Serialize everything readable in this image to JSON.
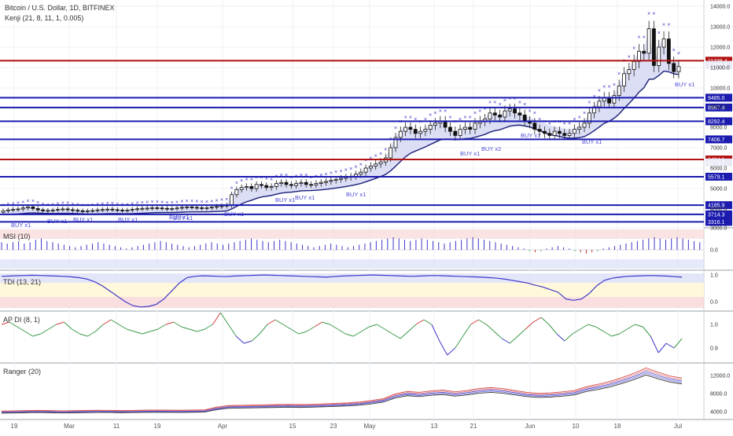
{
  "header": {
    "symbol_line": "Bitcoin / U.S. Dollar, 1D, BITFINEX",
    "indicator_line": "Kenji (21, 8, 11, 1, 0.005)"
  },
  "colors": {
    "grid": "#eef0f4",
    "level_blue": "#1b1bb0",
    "level_red": "#b31212",
    "band_fill": "#d5d8f2",
    "band_line": "#1b1f78",
    "x_marker": "#3f37c9",
    "buy_text": "#4b4bd9"
  },
  "chart_data": [
    {
      "type": "candlestick",
      "pane": "price",
      "title": "Bitcoin / U.S. Dollar, 1D, BITFINEX",
      "indicator": "Kenji (21, 8, 11, 1, 0.005)",
      "x_ticks": [
        "19",
        "Mar",
        "11",
        "19",
        "Apr",
        "15",
        "23",
        "May",
        "13",
        "21",
        "Jun",
        "10",
        "18",
        "Jul"
      ],
      "y_ticks": [
        14000.0,
        13000.0,
        12000.0,
        11000.0,
        10000.0,
        9000.0,
        8000.0,
        7000.0,
        6000.0,
        5000.0,
        4000.0,
        3000.0
      ],
      "price_tags": [
        11336.4,
        11133.4,
        9485.0,
        8967.4,
        8292.4,
        7406.7,
        6424.1,
        6275.7,
        5579.1,
        4185.9,
        3714.3,
        3316.1
      ],
      "horizontal_levels": [
        {
          "value": 11336.4,
          "color": "red"
        },
        {
          "value": 9485.0,
          "color": "blue"
        },
        {
          "value": 8967.4,
          "color": "blue"
        },
        {
          "value": 8292.4,
          "color": "blue"
        },
        {
          "value": 7406.7,
          "color": "blue"
        },
        {
          "value": 6424.1,
          "color": "red"
        },
        {
          "value": 5579.1,
          "color": "blue"
        },
        {
          "value": 4185.9,
          "color": "blue"
        },
        {
          "value": 3714.3,
          "color": "blue"
        },
        {
          "value": 3316.1,
          "color": "blue"
        }
      ],
      "signal_labels": [
        "BUY x1",
        "BUY x1",
        "BUY x1",
        "BUY x1",
        "BUY x1",
        "BUY x1",
        "BUY x1",
        "BUY x1",
        "BUY x1",
        "BUY x1",
        "BUY x1",
        "BUY x2",
        "BUY x1",
        "BUY x1",
        "BUY x1"
      ],
      "close_series": [
        3900,
        3950,
        3980,
        4000,
        4050,
        4100,
        4020,
        3950,
        3900,
        3920,
        3940,
        3980,
        4000,
        3960,
        3930,
        3900,
        3880,
        3900,
        3920,
        3950,
        3970,
        3990,
        3960,
        3940,
        3920,
        3940,
        3980,
        4010,
        4030,
        4040,
        4060,
        4050,
        4030,
        4000,
        4020,
        4050,
        4080,
        4100,
        4080,
        4060,
        4040,
        4060,
        4090,
        4120,
        4150,
        4180,
        4700,
        4950,
        5050,
        5100,
        5000,
        5200,
        5150,
        5050,
        5100,
        5250,
        5300,
        5200,
        5150,
        5250,
        5300,
        5200,
        5180,
        5250,
        5300,
        5350,
        5400,
        5450,
        5500,
        5550,
        5600,
        5700,
        5800,
        6000,
        6100,
        6200,
        6300,
        6500,
        7000,
        7500,
        7800,
        8000,
        7900,
        7700,
        7800,
        7900,
        8100,
        8200,
        8300,
        8000,
        7800,
        7600,
        7900,
        8000,
        7900,
        8200,
        8300,
        8400,
        8700,
        8600,
        8500,
        8800,
        8900,
        8700,
        8600,
        8300,
        8200,
        7900,
        7800,
        7700,
        7600,
        7800,
        7700,
        7600,
        7700,
        7900,
        8000,
        8200,
        8700,
        9000,
        9300,
        9500,
        9200,
        9600,
        10100,
        10700,
        10900,
        11300,
        11800,
        11700,
        12900,
        11100,
        12000,
        12400,
        11200,
        10800,
        11050
      ]
    },
    {
      "type": "bar",
      "pane": "MSI",
      "title": "MSI (10)",
      "y_ticks": [
        0.0
      ],
      "values": [
        0.6,
        0.5,
        0.6,
        0.7,
        0.5,
        0.6,
        0.8,
        0.9,
        0.7,
        0.6,
        0.5,
        0.4,
        0.3,
        0.2,
        0.3,
        0.4,
        0.5,
        0.6,
        0.5,
        0.4,
        0.3,
        0.2,
        0.1,
        0.2,
        0.3,
        0.4,
        0.5,
        0.6,
        0.7,
        0.6,
        0.5,
        0.4,
        0.3,
        0.2,
        0.3,
        0.4,
        0.5,
        0.6,
        0.5,
        0.4,
        0.5,
        0.6,
        0.7,
        0.8,
        0.9,
        0.8,
        0.7,
        0.6,
        0.7,
        0.8,
        0.7,
        0.6,
        0.5,
        0.4,
        0.3,
        0.2,
        0.3,
        0.4,
        0.5,
        0.4,
        0.3,
        0.2,
        0.3,
        0.4,
        0.5,
        0.6,
        0.7,
        0.8,
        0.9,
        1.0,
        0.9,
        0.8,
        0.7,
        0.8,
        0.9,
        0.8,
        0.7,
        0.6,
        0.5,
        0.6,
        0.7,
        0.8,
        0.9,
        1.0,
        0.9,
        0.8,
        0.7,
        0.6,
        0.5,
        0.4,
        0.3,
        0.2,
        0.1,
        -0.1,
        -0.2,
        -0.1,
        0.1,
        0.2,
        0.3,
        0.2,
        0.1,
        -0.1,
        -0.2,
        -0.3,
        -0.2,
        -0.1,
        0.1,
        0.2,
        0.3,
        0.4,
        0.5,
        0.6,
        0.7,
        0.8,
        0.9,
        1.0,
        0.9,
        0.8,
        0.9,
        1.0,
        0.9,
        0.8,
        0.7,
        0.6
      ]
    },
    {
      "type": "line",
      "pane": "TDI",
      "title": "TDI (13, 21)",
      "y_ticks": [
        1.0,
        0.0
      ],
      "values": [
        0.95,
        0.96,
        0.97,
        0.98,
        0.99,
        0.98,
        0.97,
        0.96,
        0.95,
        0.93,
        0.9,
        0.85,
        0.75,
        0.6,
        0.4,
        0.2,
        0.0,
        -0.15,
        -0.2,
        -0.18,
        -0.1,
        0.1,
        0.4,
        0.7,
        0.9,
        0.95,
        0.97,
        0.96,
        0.95,
        0.94,
        0.96,
        0.97,
        0.98,
        0.99,
        1.0,
        0.99,
        0.98,
        0.97,
        0.96,
        0.95,
        0.94,
        0.93,
        0.92,
        0.94,
        0.96,
        0.97,
        0.98,
        0.99,
        1.0,
        0.99,
        0.98,
        0.97,
        0.96,
        0.95,
        0.96,
        0.97,
        0.98,
        0.97,
        0.96,
        0.95,
        0.94,
        0.93,
        0.92,
        0.9,
        0.88,
        0.85,
        0.8,
        0.75,
        0.7,
        0.62,
        0.55,
        0.45,
        0.35,
        0.1,
        0.05,
        0.1,
        0.3,
        0.6,
        0.8,
        0.88,
        0.92,
        0.95,
        0.96,
        0.97,
        0.98,
        0.97,
        0.96,
        0.94,
        0.92
      ]
    },
    {
      "type": "line",
      "pane": "AP DI",
      "title": "AP DI (8, 1)",
      "y_ticks": [
        1.0,
        0.9
      ],
      "values": [
        1.0,
        1.01,
        0.99,
        0.97,
        0.95,
        0.96,
        0.98,
        1.0,
        1.01,
        0.98,
        0.96,
        0.95,
        0.97,
        1.0,
        1.02,
        1.0,
        0.98,
        0.97,
        0.96,
        0.97,
        0.98,
        1.0,
        1.01,
        0.99,
        0.98,
        0.97,
        0.98,
        1.0,
        1.05,
        1.0,
        0.95,
        0.92,
        0.93,
        0.96,
        1.0,
        1.02,
        1.0,
        0.98,
        0.96,
        0.97,
        0.99,
        1.01,
        1.0,
        0.98,
        0.96,
        0.95,
        0.97,
        0.99,
        1.0,
        0.98,
        0.96,
        0.94,
        0.97,
        1.0,
        1.02,
        1.0,
        0.93,
        0.87,
        0.9,
        0.95,
        1.0,
        1.02,
        1.0,
        0.97,
        0.94,
        0.92,
        0.95,
        0.98,
        1.01,
        1.03,
        1.0,
        0.96,
        0.93,
        0.96,
        0.98,
        1.0,
        0.99,
        0.97,
        0.95,
        0.96,
        0.98,
        1.0,
        0.99,
        0.95,
        0.88,
        0.92,
        0.9,
        0.94
      ]
    },
    {
      "type": "line",
      "pane": "Ranger",
      "title": "Ranger (20)",
      "y_ticks": [
        12000.0,
        8000.0,
        4000.0
      ],
      "values": [
        3900,
        3950,
        4000,
        4050,
        4000,
        3950,
        3980,
        4020,
        4060,
        4050,
        4000,
        4030,
        4080,
        4100,
        4080,
        4060,
        4100,
        4150,
        4700,
        5050,
        5100,
        5150,
        5200,
        5250,
        5300,
        5250,
        5300,
        5400,
        5500,
        5600,
        5800,
        6100,
        6500,
        7500,
        8000,
        7800,
        8100,
        8300,
        7900,
        8200,
        8600,
        8800,
        8600,
        8200,
        7800,
        7600,
        7700,
        7900,
        8200,
        9000,
        9500,
        10100,
        10900,
        11800,
        12900,
        12000,
        11200,
        10800
      ]
    }
  ]
}
